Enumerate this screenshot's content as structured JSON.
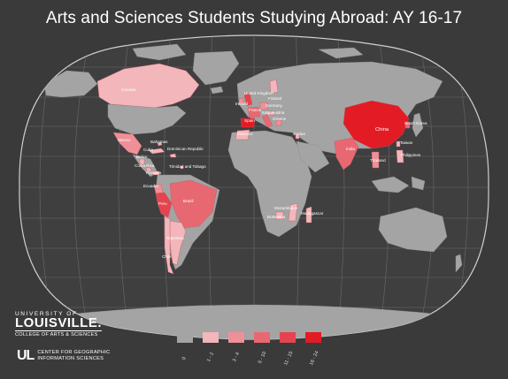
{
  "title": "Arts and Sciences Students Studying Abroad: AY 16-17",
  "colors": {
    "background": "#3a3a3a",
    "ocean": "#3f3f3f",
    "land_none": "#a4a4a4",
    "class_1": "#f2b6bb",
    "class_2": "#ef8f97",
    "class_3": "#e86872",
    "class_4": "#e5444f",
    "class_5": "#e21b25"
  },
  "countries": [
    {
      "name": "Canada",
      "class": 1
    },
    {
      "name": "United Kingdom",
      "class": 4
    },
    {
      "name": "Ireland",
      "class": 2
    },
    {
      "name": "Finland",
      "class": 1
    },
    {
      "name": "France",
      "class": 3
    },
    {
      "name": "Germany",
      "class": 2
    },
    {
      "name": "Austria",
      "class": 1
    },
    {
      "name": "Italy",
      "class": 3
    },
    {
      "name": "Greece",
      "class": 2
    },
    {
      "name": "Spain",
      "class": 5
    },
    {
      "name": "Morocco",
      "class": 1
    },
    {
      "name": "Jordan",
      "class": 1
    },
    {
      "name": "China",
      "class": 5
    },
    {
      "name": "South Korea",
      "class": 3
    },
    {
      "name": "Taiwan",
      "class": 1
    },
    {
      "name": "Philippines",
      "class": 1
    },
    {
      "name": "India",
      "class": 3
    },
    {
      "name": "Thailand",
      "class": 2
    },
    {
      "name": "Mexico",
      "class": 2
    },
    {
      "name": "Bahamas",
      "class": 1
    },
    {
      "name": "Cuba",
      "class": 1
    },
    {
      "name": "Dominican Republic",
      "class": 1
    },
    {
      "name": "Belize",
      "class": 1
    },
    {
      "name": "Costa Rica",
      "class": 1
    },
    {
      "name": "Panama",
      "class": 1
    },
    {
      "name": "Trinidad and Tobago",
      "class": 1
    },
    {
      "name": "Ecuador",
      "class": 2
    },
    {
      "name": "Peru",
      "class": 4
    },
    {
      "name": "Brazil",
      "class": 3
    },
    {
      "name": "Argentina",
      "class": 1
    },
    {
      "name": "Chile",
      "class": 1
    },
    {
      "name": "Mozambique",
      "class": 1
    },
    {
      "name": "Botswana",
      "class": 1
    },
    {
      "name": "Madagascar",
      "class": 1
    }
  ],
  "map_labels": {
    "canada": "Canada",
    "united_kingdom": "United Kingdom",
    "ireland": "Ireland",
    "finland": "Finland",
    "france": "France",
    "germany": "Germany",
    "austria": "Austria",
    "italy": "Italy",
    "greece": "Greece",
    "spain": "Spain",
    "morocco": "Morocco",
    "jordan": "Jordan",
    "china": "China",
    "south_korea": "South Korea",
    "taiwan": "Taiwan",
    "philippines": "Philippines",
    "india": "India",
    "thailand": "Thailand",
    "mexico": "Mexico",
    "bahamas": "Bahamas",
    "cuba": "Cuba",
    "dominican_republic": "Dominican Republic",
    "belize": "Belize",
    "costa_rica": "Costa Rica",
    "panama": "Panama",
    "trinidad_tobago": "Trinidad and Tobago",
    "ecuador": "Ecuador",
    "peru": "Peru",
    "brazil": "Brazil",
    "argentina": "Argentina",
    "chile": "Chile",
    "mozambique": "Mozambique",
    "botswana": "Botswana",
    "madagascar": "Madagascar"
  },
  "legend": {
    "classes": [
      "0",
      "1 - 2",
      "3 - 4",
      "5 - 10",
      "11 - 15",
      "16 - 24"
    ],
    "colors": [
      "#a4a4a4",
      "#f2b6bb",
      "#ef8f97",
      "#e86872",
      "#e5444f",
      "#e21b25"
    ]
  },
  "branding": {
    "univ_line1": "UNIVERSITY OF",
    "univ_line2": "LOUISVILLE.",
    "univ_line3": "COLLEGE OF ARTS & SCIENCES",
    "cgis_mark": "UL",
    "cgis_line1": "CENTER FOR GEOGRAPHIC",
    "cgis_line2": "INFORMATION SCIENCES"
  }
}
